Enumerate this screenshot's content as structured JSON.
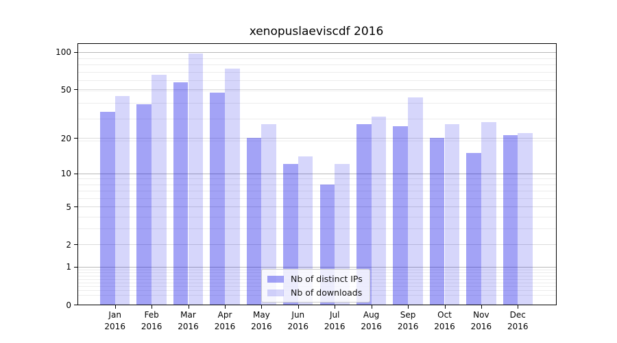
{
  "title": "xenopuslaeviscdf 2016",
  "chart_data": {
    "type": "bar",
    "title": "xenopuslaeviscdf 2016",
    "year": "2016",
    "categories": [
      "Jan",
      "Feb",
      "Mar",
      "Apr",
      "May",
      "Jun",
      "Jul",
      "Aug",
      "Sep",
      "Oct",
      "Nov",
      "Dec"
    ],
    "series": [
      {
        "name": "Nb of distinct IPs",
        "color": "#0000e6",
        "alpha": 0.36,
        "rendered_hex": "#a3a3f4",
        "values": [
          33,
          38,
          57,
          47,
          20,
          12,
          8,
          26,
          25,
          20,
          15,
          21
        ]
      },
      {
        "name": "Nb of downloads",
        "color": "#0000e6",
        "alpha": 0.16,
        "rendered_hex": "#d7d7fb",
        "values": [
          44,
          66,
          97,
          74,
          26,
          14,
          12,
          30,
          43,
          26,
          27,
          22
        ]
      }
    ],
    "yscale": "log10(value+1)",
    "yticks": [
      0,
      1,
      2,
      5,
      10,
      20,
      50,
      100
    ],
    "ylim": [
      0,
      116
    ],
    "grid": true,
    "y_gridlines": {
      "major": [
        1,
        10,
        100
      ],
      "mid": [
        2,
        5,
        20,
        50
      ],
      "minor": [
        0.2,
        0.3,
        0.4,
        0.5,
        0.6,
        0.7,
        0.8,
        0.9,
        2,
        3,
        4,
        5,
        6,
        7,
        8,
        9,
        19,
        29,
        39,
        49,
        59,
        69,
        79,
        89
      ]
    },
    "legend_position": "lower center",
    "gridline_colors": {
      "major": "#b8b8b8",
      "mid": "#dcdcdc",
      "minor": "#ececec"
    }
  }
}
